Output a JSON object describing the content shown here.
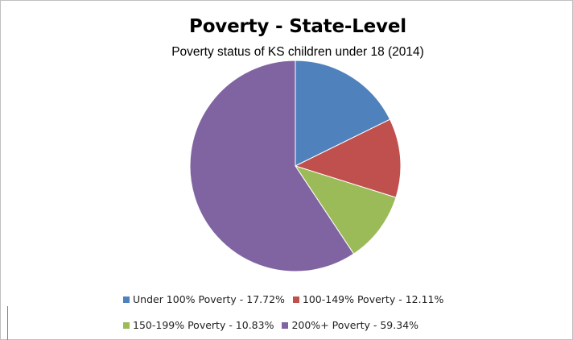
{
  "chart_data": {
    "type": "pie",
    "title": "Poverty - State-Level",
    "subtitle": "Poverty status of KS children under 18 (2014)",
    "slices": [
      {
        "label": "Under 100% Poverty - 17.72%",
        "value": 17.72,
        "color": "#4F81BD"
      },
      {
        "label": "100-149% Poverty - 12.11%",
        "value": 12.11,
        "color": "#C0504D"
      },
      {
        "label": "150-199% Poverty - 10.83%",
        "value": 10.83,
        "color": "#9BBB59"
      },
      {
        "label": "200%+ Poverty - 59.34%",
        "value": 59.34,
        "color": "#8064A2"
      }
    ],
    "legend_position": "bottom"
  }
}
